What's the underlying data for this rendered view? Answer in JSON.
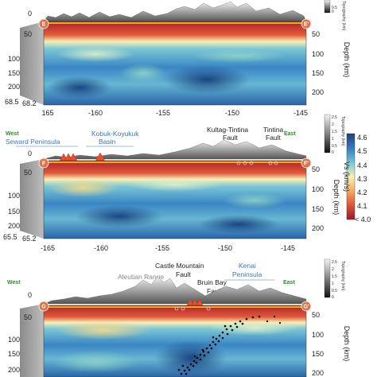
{
  "panels": [
    {
      "id": "E",
      "start": "E",
      "end": "E'",
      "lon_ticks": [
        "165",
        "-160",
        "-155",
        "-150",
        "-145"
      ],
      "depth_ticks_left": [
        "0",
        "50",
        "100",
        "150",
        "200"
      ],
      "depth_ticks_right": [
        "50",
        "100",
        "150",
        "200"
      ],
      "lat_ticks": [
        "68.5",
        "68.2"
      ],
      "depth_label": "Depth (km)",
      "topo_label": "Topography (km)",
      "topo_ticks": [
        "",
        "",
        "0.5",
        "0"
      ]
    },
    {
      "id": "F",
      "start": "F",
      "end": "F'",
      "west": "West",
      "east": "East",
      "labels": {
        "seward": "Seward Peninsula",
        "kobuk": [
          "Kobuk-Koyukuk",
          "Basin"
        ],
        "kultag": [
          "Kultag-Tintina",
          "Fault"
        ],
        "tintina": [
          "Tintina",
          "Fault"
        ]
      },
      "lon_ticks": [
        "-165",
        "-160",
        "-155",
        "-150",
        "-145"
      ],
      "depth_ticks_left": [
        "0",
        "50",
        "100",
        "150",
        "200"
      ],
      "depth_ticks_right": [
        "50",
        "100",
        "150",
        "200"
      ],
      "lat_ticks": [
        "65.5",
        "65.2"
      ],
      "depth_label": "Depth (km)",
      "topo_label": "Topography (km)",
      "topo_ticks": [
        "2.5",
        "2",
        "1.5",
        "1",
        "0.5",
        "0"
      ],
      "vs_label": "Vs (km/s)",
      "vs_ticks": [
        "4.6",
        "4.5",
        "4.4",
        "4.3",
        "4.2",
        "4.1",
        "< 4.0"
      ]
    },
    {
      "id": "G",
      "start": "G",
      "end": "G'",
      "west": "West",
      "east": "East",
      "labels": {
        "castle": [
          "Castle Mountain",
          "Fault"
        ],
        "aleutian": "Aleutian Range",
        "bruin": [
          "Bruin Bay",
          "Fault"
        ],
        "kenai": [
          "Kenai",
          "Peninsula"
        ]
      },
      "depth_ticks_left": [
        "0",
        "50",
        "100",
        "150",
        "200"
      ],
      "depth_ticks_right": [
        "50",
        "100",
        "150",
        "200"
      ],
      "depth_label": "Depth (km)",
      "topo_label": "Topography (km)",
      "topo_ticks": [
        "2.5",
        "2",
        "1.5",
        "1",
        "0.5",
        "0"
      ]
    }
  ],
  "colors": {
    "high_vs": "#1a3f7a",
    "mid_vs": "#4fb0d8",
    "neutral_vs": "#f6f2b8",
    "low_vs": "#c62828",
    "moho_line": "#f2e300",
    "volcano": "#e8502a",
    "endpoint": "#d9774a"
  }
}
